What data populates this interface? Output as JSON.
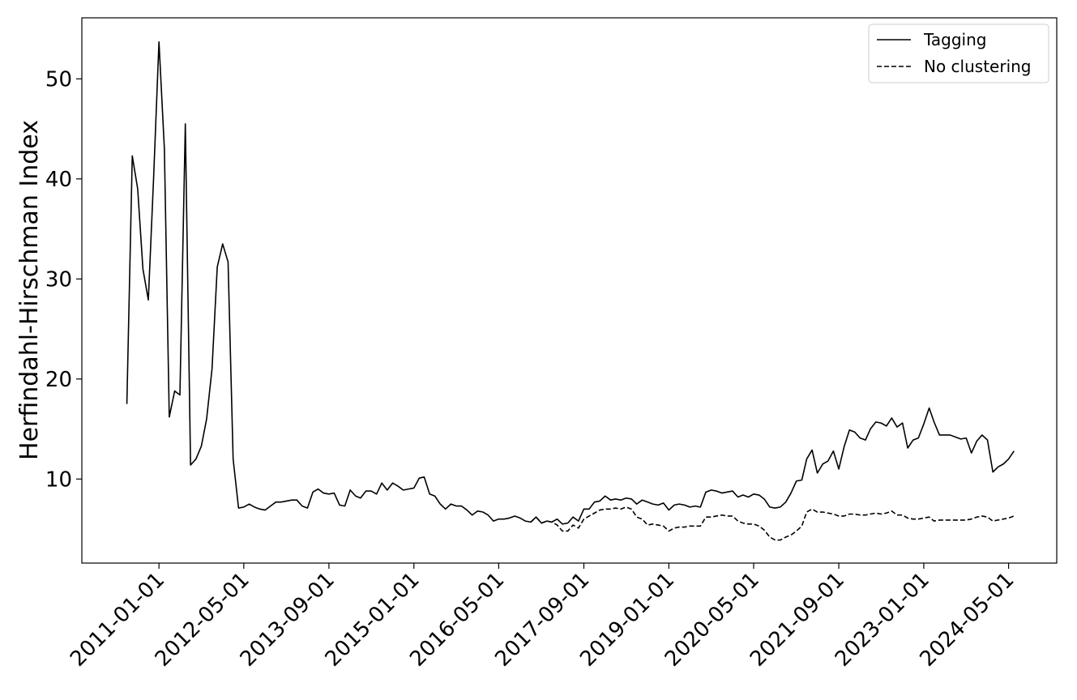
{
  "chart_data": {
    "type": "line",
    "ylabel": "Herfindahl-Hirschman Index",
    "x": [
      "2010-07",
      "2010-08",
      "2010-09",
      "2010-10",
      "2010-11",
      "2010-12",
      "2011-01",
      "2011-02",
      "2011-03",
      "2011-04",
      "2011-05",
      "2011-06",
      "2011-07",
      "2011-08",
      "2011-09",
      "2011-10",
      "2011-11",
      "2011-12",
      "2012-01",
      "2012-02",
      "2012-03",
      "2012-04",
      "2012-05",
      "2012-06",
      "2012-07",
      "2012-08",
      "2012-09",
      "2012-10",
      "2012-11",
      "2012-12",
      "2013-01",
      "2013-02",
      "2013-03",
      "2013-04",
      "2013-05",
      "2013-06",
      "2013-07",
      "2013-08",
      "2013-09",
      "2013-10",
      "2013-11",
      "2013-12",
      "2014-01",
      "2014-02",
      "2014-03",
      "2014-04",
      "2014-05",
      "2014-06",
      "2014-07",
      "2014-08",
      "2014-09",
      "2014-10",
      "2014-11",
      "2014-12",
      "2015-01",
      "2015-02",
      "2015-03",
      "2015-04",
      "2015-05",
      "2015-06",
      "2015-07",
      "2015-08",
      "2015-09",
      "2015-10",
      "2015-11",
      "2015-12",
      "2016-01",
      "2016-02",
      "2016-03",
      "2016-04",
      "2016-05",
      "2016-06",
      "2016-07",
      "2016-08",
      "2016-09",
      "2016-10",
      "2016-11",
      "2016-12",
      "2017-01",
      "2017-02",
      "2017-03",
      "2017-04",
      "2017-05",
      "2017-06",
      "2017-07",
      "2017-08",
      "2017-09",
      "2017-10",
      "2017-11",
      "2017-12",
      "2018-01",
      "2018-02",
      "2018-03",
      "2018-04",
      "2018-05",
      "2018-06",
      "2018-07",
      "2018-08",
      "2018-09",
      "2018-10",
      "2018-11",
      "2018-12",
      "2019-01",
      "2019-02",
      "2019-03",
      "2019-04",
      "2019-05",
      "2019-06",
      "2019-07",
      "2019-08",
      "2019-09",
      "2019-10",
      "2019-11",
      "2019-12",
      "2020-01",
      "2020-02",
      "2020-03",
      "2020-04",
      "2020-05",
      "2020-06",
      "2020-07",
      "2020-08",
      "2020-09",
      "2020-10",
      "2020-11",
      "2020-12",
      "2021-01",
      "2021-02",
      "2021-03",
      "2021-04",
      "2021-05",
      "2021-06",
      "2021-07",
      "2021-08",
      "2021-09",
      "2021-10",
      "2021-11",
      "2021-12",
      "2022-01",
      "2022-02",
      "2022-03",
      "2022-04",
      "2022-05",
      "2022-06",
      "2022-07",
      "2022-08",
      "2022-09",
      "2022-10",
      "2022-11",
      "2022-12",
      "2023-01",
      "2023-02",
      "2023-03",
      "2023-04",
      "2023-05",
      "2023-06",
      "2023-07",
      "2023-08",
      "2023-09",
      "2023-10",
      "2023-11",
      "2023-12",
      "2024-01",
      "2024-02",
      "2024-03",
      "2024-04",
      "2024-05",
      "2024-06"
    ],
    "series": [
      {
        "name": "Tagging",
        "color": "#000000",
        "linestyle": "solid",
        "values": [
          17.5,
          42.3,
          39,
          31,
          27.9,
          40,
          53.7,
          43,
          16.2,
          18.8,
          18.4,
          45.5,
          11.4,
          12,
          13.3,
          16,
          21,
          31.2,
          33.5,
          31.7,
          12,
          7.1,
          7.2,
          7.5,
          7.2,
          7.0,
          6.9,
          7.3,
          7.7,
          7.7,
          7.8,
          7.9,
          7.9,
          7.3,
          7.1,
          8.7,
          9.0,
          8.6,
          8.5,
          8.6,
          7.4,
          7.3,
          8.9,
          8.3,
          8.1,
          8.8,
          8.8,
          8.5,
          9.6,
          8.9,
          9.6,
          9.3,
          8.9,
          9.0,
          9.1,
          10.1,
          10.2,
          8.5,
          8.3,
          7.5,
          7.0,
          7.5,
          7.3,
          7.3,
          6.9,
          6.4,
          6.8,
          6.7,
          6.4,
          5.8,
          6.0,
          6.0,
          6.1,
          6.3,
          6.1,
          5.8,
          5.7,
          6.2,
          5.6,
          5.8,
          5.7,
          6.0,
          5.5,
          5.6,
          6.2,
          5.8,
          7.0,
          7.0,
          7.7,
          7.8,
          8.3,
          7.9,
          8.0,
          7.9,
          8.1,
          8.0,
          7.5,
          7.9,
          7.7,
          7.5,
          7.4,
          7.6,
          6.9,
          7.4,
          7.5,
          7.4,
          7.2,
          7.3,
          7.2,
          8.7,
          8.9,
          8.8,
          8.6,
          8.7,
          8.8,
          8.2,
          8.4,
          8.2,
          8.5,
          8.4,
          8.0,
          7.2,
          7.1,
          7.2,
          7.7,
          8.6,
          9.8,
          9.9,
          12.0,
          12.9,
          10.6,
          11.5,
          11.8,
          12.8,
          11.0,
          13.2,
          14.9,
          14.7,
          14.1,
          13.9,
          15.0,
          15.7,
          15.6,
          15.3,
          16.1,
          15.2,
          15.6,
          13.1,
          13.9,
          14.1,
          15.5,
          17.1,
          15.7,
          14.4,
          14.4,
          14.4,
          14.2,
          14.0,
          14.1,
          12.6,
          13.8,
          14.4,
          13.9,
          10.7,
          11.2,
          11.5,
          12.0,
          12.8
        ]
      },
      {
        "name": "No clustering",
        "color": "#000000",
        "linestyle": "dashed",
        "values": [
          null,
          null,
          null,
          null,
          null,
          null,
          null,
          null,
          null,
          null,
          null,
          null,
          null,
          null,
          null,
          null,
          null,
          null,
          null,
          null,
          null,
          null,
          null,
          null,
          null,
          null,
          null,
          null,
          null,
          null,
          null,
          null,
          null,
          null,
          null,
          null,
          null,
          null,
          null,
          null,
          null,
          null,
          null,
          null,
          null,
          null,
          null,
          null,
          null,
          null,
          null,
          null,
          null,
          null,
          null,
          null,
          null,
          null,
          null,
          null,
          null,
          null,
          null,
          null,
          null,
          null,
          null,
          null,
          null,
          null,
          null,
          null,
          null,
          null,
          null,
          null,
          5.7,
          6.2,
          5.6,
          5.8,
          5.7,
          5.4,
          4.8,
          4.8,
          5.4,
          5.1,
          6.0,
          6.3,
          6.6,
          6.9,
          7.0,
          7.0,
          7.1,
          7.0,
          7.2,
          7.0,
          6.2,
          6.0,
          5.4,
          5.5,
          5.4,
          5.3,
          4.8,
          5.1,
          5.2,
          5.2,
          5.3,
          5.3,
          5.3,
          6.2,
          6.2,
          6.3,
          6.4,
          6.3,
          6.3,
          5.8,
          5.6,
          5.5,
          5.5,
          5.3,
          4.9,
          4.2,
          3.9,
          3.9,
          4.2,
          4.4,
          4.8,
          5.3,
          6.7,
          7.0,
          6.7,
          6.7,
          6.6,
          6.5,
          6.3,
          6.3,
          6.5,
          6.5,
          6.4,
          6.4,
          6.5,
          6.6,
          6.5,
          6.6,
          6.8,
          6.4,
          6.4,
          6.1,
          6.0,
          6.0,
          6.1,
          6.2,
          5.8,
          5.9,
          5.9,
          5.9,
          5.9,
          5.9,
          5.9,
          6.0,
          6.2,
          6.3,
          6.2,
          5.8,
          5.9,
          6.0,
          6.1,
          6.3
        ]
      }
    ],
    "xlim": [
      "2009-10-16",
      "2025-02-01"
    ],
    "xticks": [
      "2011-01-01",
      "2012-05-01",
      "2013-09-01",
      "2015-01-01",
      "2016-05-01",
      "2017-09-01",
      "2019-01-01",
      "2020-05-01",
      "2021-09-01",
      "2023-01-01",
      "2024-05-01"
    ],
    "ylim": [
      1.6,
      56.1
    ],
    "yticks": [
      10,
      20,
      30,
      40,
      50
    ],
    "legend": "upper right",
    "grid": false
  }
}
